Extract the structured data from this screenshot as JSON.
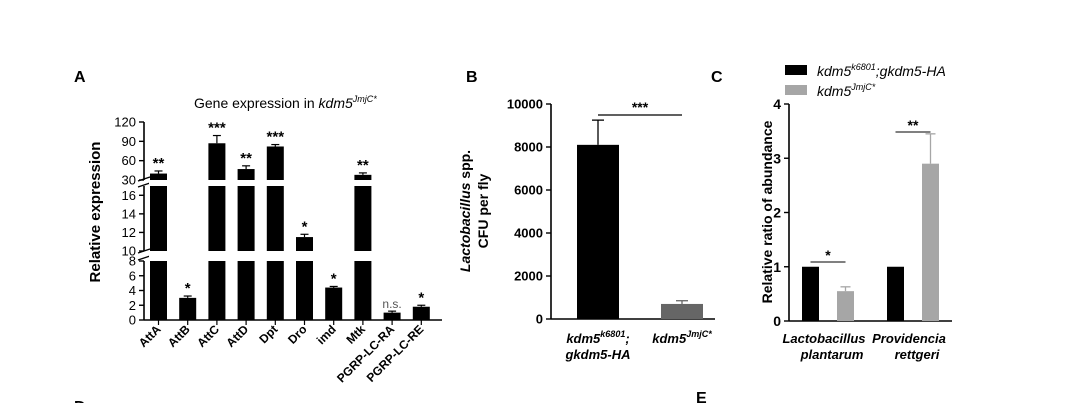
{
  "panel_labels": {
    "a": "A",
    "b": "B",
    "c": "C",
    "d": "D",
    "e": "E"
  },
  "chart_data": [
    {
      "panel": "A",
      "type": "bar",
      "title_prefix": "Gene expression in ",
      "title_gene": "kdm5",
      "title_sup": "JmjC*",
      "ylabel": "Relative expression",
      "y_axis": "broken",
      "y_segments": [
        {
          "range": [
            0,
            8
          ],
          "ticks": [
            "0",
            "2",
            "4",
            "6",
            "8"
          ]
        },
        {
          "range": [
            10,
            17
          ],
          "ticks": [
            "10",
            "12",
            "14",
            "16"
          ]
        },
        {
          "range": [
            30,
            120
          ],
          "ticks": [
            "30",
            "60",
            "90",
            "120"
          ]
        }
      ],
      "categories": [
        "AttA",
        "AttB",
        "AttC",
        "AttD",
        "Dpt",
        "Dro",
        "imd",
        "Mtk",
        "PGRP-LC-RA",
        "PGRP-LC-RE"
      ],
      "values": [
        40,
        3.0,
        87,
        47,
        82,
        11.5,
        4.4,
        38,
        1.0,
        1.8
      ],
      "errors": [
        4,
        0.25,
        12,
        5,
        3,
        0.3,
        0.15,
        3,
        0.2,
        0.2
      ],
      "significance": [
        "**",
        "*",
        "***",
        "**",
        "***",
        "*",
        "*",
        "**",
        "n.s.",
        "*"
      ],
      "color": "#000000"
    },
    {
      "panel": "B",
      "type": "bar",
      "ylabel_italic": "Lactobacillus",
      "ylabel_rest": " spp.",
      "ylabel_line2": "CFU per fly",
      "ylim": [
        0,
        10000
      ],
      "yticks": [
        "0",
        "2000",
        "4000",
        "6000",
        "8000",
        "10000"
      ],
      "categories": [
        {
          "l1": "kdm5",
          "s1": "k6801",
          "p1": ";",
          "l2": "gkdm5-HA"
        },
        {
          "l1": "kdm5",
          "s1": "JmjC*",
          "p1": "",
          "l2": ""
        }
      ],
      "values": [
        8100,
        700
      ],
      "errors": [
        1150,
        150
      ],
      "colors": [
        "#000000",
        "#666666"
      ],
      "significance": "***"
    },
    {
      "panel": "C",
      "type": "bar",
      "ylabel": "Relative ratio of abundance",
      "ylim": [
        0,
        4
      ],
      "yticks": [
        "0",
        "1",
        "2",
        "3",
        "4"
      ],
      "legend": [
        {
          "name": "kdm5",
          "sup": "k6801",
          "rest": ";gkdm5-HA",
          "color": "#000000"
        },
        {
          "name": "kdm5",
          "sup": "JmjC*",
          "rest": "",
          "color": "#a6a6a6"
        }
      ],
      "categories": [
        {
          "l1": "Lactobacillus",
          "l2": "plantarum"
        },
        {
          "l1": "Providencia",
          "l2": "rettgeri"
        }
      ],
      "series": [
        {
          "values": [
            1.0,
            1.0
          ],
          "errors": [
            0,
            0
          ]
        },
        {
          "values": [
            0.55,
            2.9
          ],
          "errors": [
            0.08,
            0.55
          ]
        }
      ],
      "significance": [
        "*",
        "**"
      ]
    }
  ]
}
